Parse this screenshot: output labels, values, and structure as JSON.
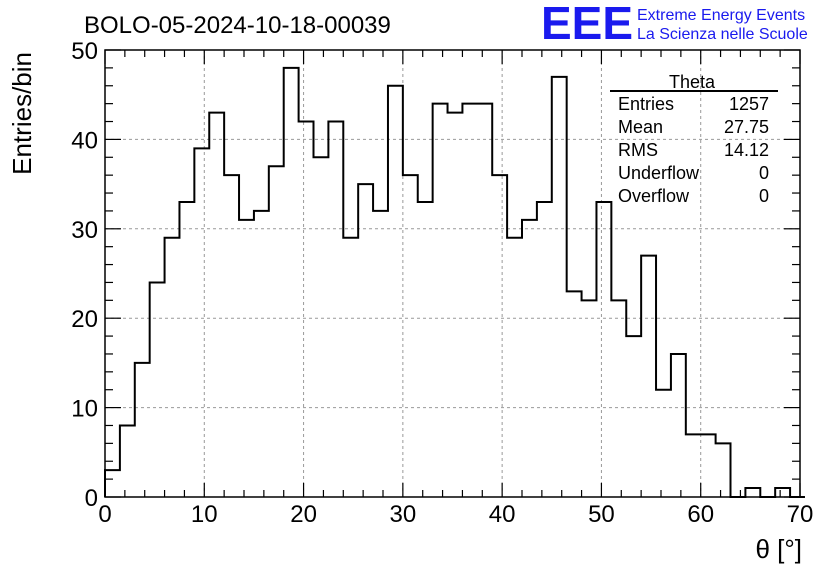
{
  "logo": {
    "text": "EEE",
    "line1": "Extreme Energy Events",
    "line2": "La Scienza nelle Scuole",
    "color": "#1a1aee"
  },
  "stats": {
    "title": "Theta",
    "rows": [
      {
        "label": "Entries",
        "value": "1257"
      },
      {
        "label": "Mean",
        "value": "27.75"
      },
      {
        "label": "RMS",
        "value": "14.12"
      },
      {
        "label": "Underflow",
        "value": "0"
      },
      {
        "label": "Overflow",
        "value": "0"
      }
    ]
  },
  "chart_data": {
    "type": "histogram",
    "title": "BOLO-05-2024-10-18-00039",
    "xlabel": "θ [°]",
    "ylabel": "Entries/bin",
    "xlim": [
      0,
      70
    ],
    "ylim": [
      0,
      50
    ],
    "xticks": [
      0,
      10,
      20,
      30,
      40,
      50,
      60,
      70
    ],
    "yticks": [
      0,
      10,
      20,
      30,
      40,
      50
    ],
    "grid": true,
    "bin_width": 1.5,
    "bin_start": 0,
    "values": [
      3,
      8,
      15,
      24,
      29,
      33,
      39,
      43,
      36,
      31,
      32,
      37,
      48,
      42,
      38,
      42,
      29,
      35,
      32,
      46,
      36,
      33,
      44,
      43,
      44,
      44,
      36,
      29,
      31,
      33,
      47,
      23,
      22,
      33,
      22,
      18,
      27,
      12,
      16,
      7,
      7,
      6,
      0,
      1,
      0,
      1,
      0
    ]
  }
}
